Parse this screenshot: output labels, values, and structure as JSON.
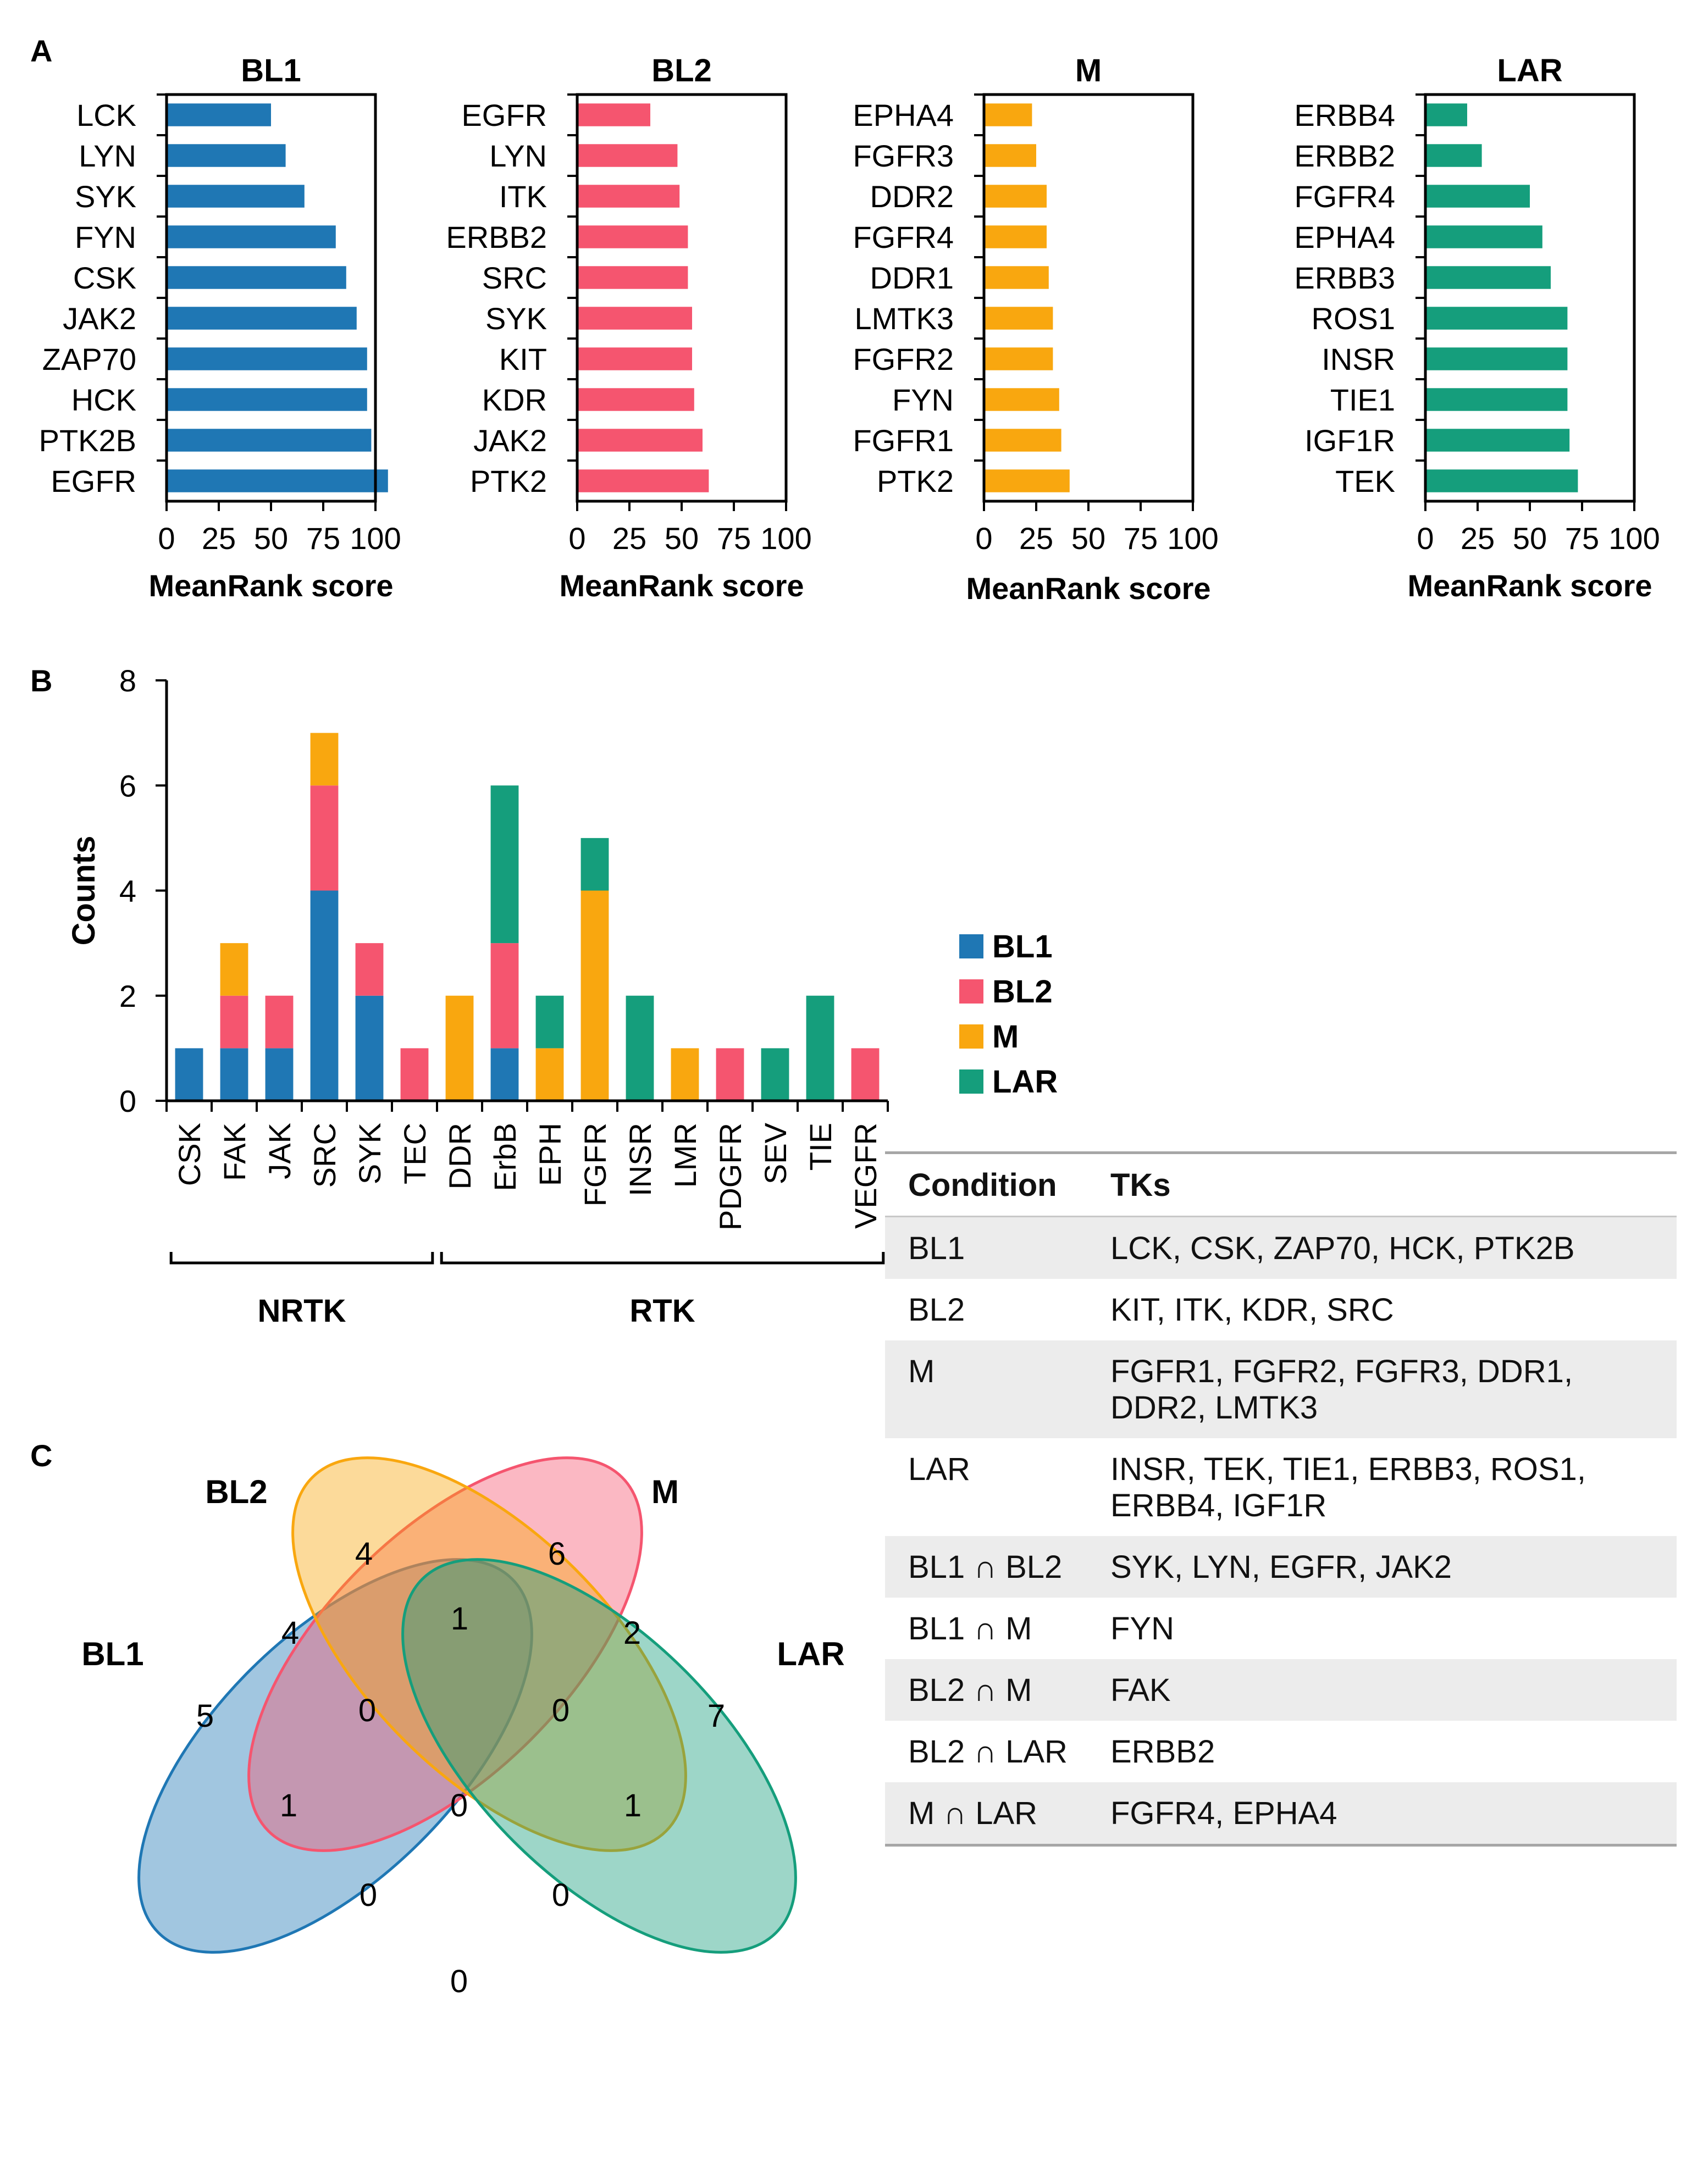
{
  "panel_labels": {
    "a": "A",
    "b": "B",
    "c": "C"
  },
  "chart_data": [
    {
      "type": "bar",
      "orientation": "horizontal",
      "title": "BL1",
      "color": "#1f77b4",
      "categories": [
        "LCK",
        "LYN",
        "SYK",
        "FYN",
        "CSK",
        "JAK2",
        "ZAP70",
        "HCK",
        "PTK2B",
        "EGFR"
      ],
      "values": [
        50,
        57,
        66,
        81,
        86,
        91,
        96,
        96,
        98,
        106
      ],
      "xlabel": "MeanRank score",
      "xlim": [
        0,
        100
      ],
      "xticks": [
        0,
        25,
        50,
        75,
        100
      ],
      "xtick_labels": [
        "0",
        "25",
        "50",
        "75",
        "100"
      ]
    },
    {
      "type": "bar",
      "orientation": "horizontal",
      "title": "BL2",
      "color": "#f5556f",
      "categories": [
        "EGFR",
        "LYN",
        "ITK",
        "ERBB2",
        "SRC",
        "SYK",
        "KIT",
        "KDR",
        "JAK2",
        "PTK2"
      ],
      "values": [
        35,
        48,
        49,
        53,
        53,
        55,
        55,
        56,
        60,
        63
      ],
      "xlabel": "MeanRank score",
      "xlim": [
        0,
        100
      ],
      "xticks": [
        0,
        25,
        50,
        75,
        100
      ],
      "xtick_labels": [
        "0",
        "25",
        "50",
        "75",
        "100"
      ]
    },
    {
      "type": "bar",
      "orientation": "horizontal",
      "title": "M",
      "color": "#f9a70f",
      "categories": [
        "EPHA4",
        "FGFR3",
        "DDR2",
        "FGFR4",
        "DDR1",
        "LMTK3",
        "FGFR2",
        "FYN",
        "FGFR1",
        "PTK2"
      ],
      "values": [
        23,
        25,
        30,
        30,
        31,
        33,
        33,
        36,
        37,
        41
      ],
      "xlabel": "MeanRank score",
      "xlim": [
        0,
        100
      ],
      "xticks": [
        0,
        25,
        50,
        75,
        100
      ],
      "xtick_labels": [
        "0",
        "25",
        "50",
        "75",
        "100"
      ]
    },
    {
      "type": "bar",
      "orientation": "horizontal",
      "title": "LAR",
      "color": "#159e7c",
      "categories": [
        "ERBB4",
        "ERBB2",
        "FGFR4",
        "EPHA4",
        "ERBB3",
        "ROS1",
        "INSR",
        "TIE1",
        "IGF1R",
        "TEK"
      ],
      "values": [
        20,
        27,
        50,
        56,
        60,
        68,
        68,
        68,
        69,
        73
      ],
      "xlabel": "MeanRank score",
      "xlim": [
        0,
        100
      ],
      "xticks": [
        0,
        25,
        50,
        75,
        100
      ],
      "xtick_labels": [
        "0",
        "25",
        "50",
        "75",
        "100"
      ]
    },
    {
      "type": "bar",
      "stacked": true,
      "categories": [
        "CSK",
        "FAK",
        "JAK",
        "SRC",
        "SYK",
        "TEC",
        "DDR",
        "ErbB",
        "EPH",
        "FGFR",
        "INSR",
        "LMR",
        "PDGFR",
        "SEV",
        "TIE",
        "VEGFR"
      ],
      "series": [
        {
          "name": "BL1",
          "color": "#1f77b4",
          "values": [
            1,
            1,
            1,
            4,
            2,
            0,
            0,
            1,
            0,
            0,
            0,
            0,
            0,
            0,
            0,
            0
          ]
        },
        {
          "name": "BL2",
          "color": "#f5556f",
          "values": [
            0,
            1,
            1,
            2,
            1,
            1,
            0,
            2,
            0,
            0,
            0,
            0,
            1,
            0,
            0,
            1
          ]
        },
        {
          "name": "M",
          "color": "#f9a70f",
          "values": [
            0,
            1,
            0,
            1,
            0,
            0,
            2,
            0,
            1,
            4,
            0,
            1,
            0,
            0,
            0,
            0
          ]
        },
        {
          "name": "LAR",
          "color": "#159e7c",
          "values": [
            0,
            0,
            0,
            0,
            0,
            0,
            0,
            3,
            1,
            1,
            2,
            0,
            0,
            1,
            2,
            0
          ]
        }
      ],
      "ylabel": "Counts",
      "ylim": [
        0,
        8
      ],
      "yticks": [
        0,
        2,
        4,
        6,
        8
      ],
      "ytick_labels": [
        "0",
        "2",
        "4",
        "6",
        "8"
      ],
      "groups": [
        {
          "label": "NRTK",
          "from": 0,
          "to": 5
        },
        {
          "label": "RTK",
          "from": 6,
          "to": 15
        }
      ]
    }
  ],
  "venn": {
    "sets": [
      {
        "name": "BL1",
        "color": "#1f77b4",
        "only": 5
      },
      {
        "name": "BL2",
        "color": "#f5556f",
        "only": 4
      },
      {
        "name": "M",
        "color": "#f9a70f",
        "only": 6
      },
      {
        "name": "LAR",
        "color": "#159e7c",
        "only": 7
      }
    ],
    "regions": {
      "BL1_BL2": 4,
      "BL2_M": 1,
      "M_LAR": 2,
      "BL1_M": 1,
      "BL2_LAR": 1,
      "BL1_LAR": 0,
      "BL1_BL2_M": 0,
      "BL2_M_LAR": 0,
      "BL1_M_LAR": 0,
      "BL1_BL2_LAR": 0,
      "all": 0
    }
  },
  "table": {
    "header": {
      "condition": "Condition",
      "tks": "TKs"
    },
    "rows": [
      {
        "condition": "BL1",
        "tks": "LCK, CSK, ZAP70, HCK, PTK2B"
      },
      {
        "condition": "BL2",
        "tks": "KIT, ITK, KDR, SRC"
      },
      {
        "condition": "M",
        "tks": "FGFR1, FGFR2, FGFR3, DDR1, DDR2, LMTK3"
      },
      {
        "condition": "LAR",
        "tks": "INSR, TEK, TIE1, ERBB3, ROS1, ERBB4, IGF1R"
      },
      {
        "condition": "BL1 ∩ BL2",
        "tks": "SYK, LYN, EGFR, JAK2"
      },
      {
        "condition": "BL1 ∩ M",
        "tks": "FYN"
      },
      {
        "condition": "BL2 ∩ M",
        "tks": "FAK"
      },
      {
        "condition": "BL2 ∩ LAR",
        "tks": "ERBB2"
      },
      {
        "condition": "M ∩ LAR",
        "tks": "FGFR4, EPHA4"
      }
    ]
  }
}
